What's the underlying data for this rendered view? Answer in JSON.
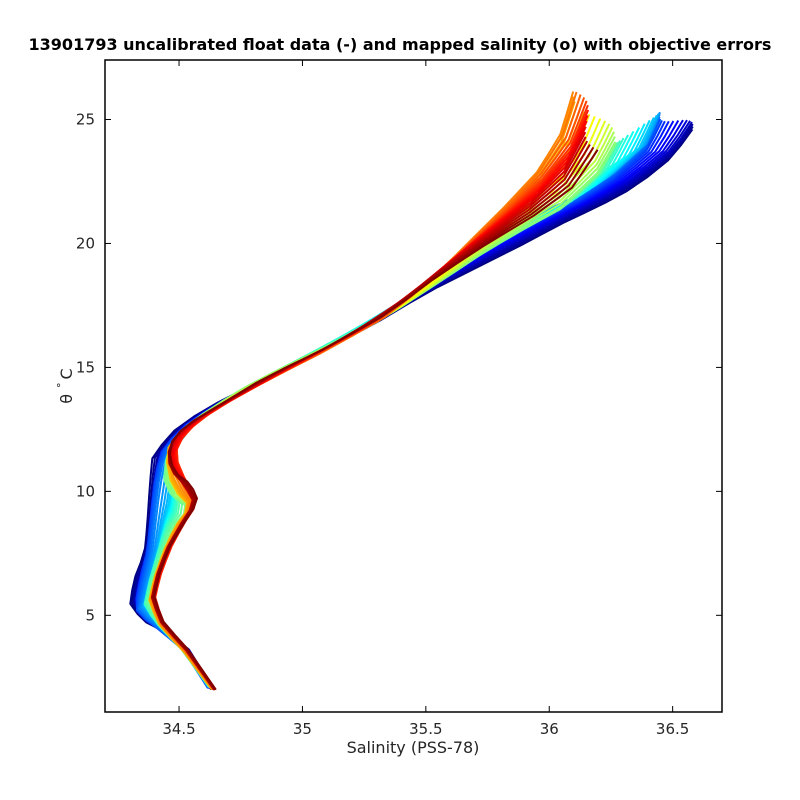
{
  "chart_data": {
    "type": "line",
    "title": "13901793 uncalibrated float data (-) and mapped salinity (o) with objective errors",
    "xlabel": "Salinity (PSS-78)",
    "ylabel_symbol": "θ",
    "ylabel_degree": "°",
    "ylabel_unit": "C",
    "xlim": [
      34.2,
      36.7
    ],
    "ylim": [
      1.1,
      27.4
    ],
    "xticks": [
      {
        "value": 34.5,
        "label": "34.5"
      },
      {
        "value": 35,
        "label": "35"
      },
      {
        "value": 35.5,
        "label": "35.5"
      },
      {
        "value": 36,
        "label": "36"
      },
      {
        "value": 36.5,
        "label": "36.5"
      }
    ],
    "yticks": [
      {
        "value": 5,
        "label": "5"
      },
      {
        "value": 10,
        "label": "10"
      },
      {
        "value": 15,
        "label": "15"
      },
      {
        "value": 20,
        "label": "20"
      },
      {
        "value": 25,
        "label": "25"
      }
    ],
    "grid": false,
    "colormap": "jet",
    "profile_count": 60,
    "representative_profiles": [
      {
        "color": "#00008f",
        "points": [
          [
            34.63,
            2.0
          ],
          [
            34.55,
            3.5
          ],
          [
            34.45,
            4.3
          ],
          [
            34.35,
            4.8
          ],
          [
            34.3,
            5.5
          ],
          [
            34.32,
            6.5
          ],
          [
            34.36,
            7.5
          ],
          [
            34.37,
            8.5
          ],
          [
            34.38,
            10.0
          ],
          [
            34.39,
            11.3
          ],
          [
            34.46,
            12.3
          ],
          [
            34.6,
            13.3
          ],
          [
            34.8,
            14.3
          ],
          [
            35.05,
            15.5
          ],
          [
            35.3,
            16.8
          ],
          [
            35.5,
            18.0
          ],
          [
            35.7,
            19.0
          ],
          [
            35.9,
            20.0
          ],
          [
            36.05,
            20.8
          ],
          [
            36.2,
            21.5
          ],
          [
            36.35,
            22.3
          ],
          [
            36.5,
            23.5
          ],
          [
            36.58,
            24.6
          ]
        ]
      },
      {
        "color": "#00cfff",
        "points": [
          [
            34.62,
            2.1
          ],
          [
            34.52,
            3.6
          ],
          [
            34.42,
            4.5
          ],
          [
            34.34,
            5.2
          ],
          [
            34.36,
            6.2
          ],
          [
            34.39,
            7.5
          ],
          [
            34.4,
            8.5
          ],
          [
            34.42,
            10.2
          ],
          [
            34.45,
            11.6
          ],
          [
            34.53,
            12.6
          ],
          [
            34.68,
            13.6
          ],
          [
            34.9,
            14.8
          ],
          [
            35.15,
            16.1
          ],
          [
            35.4,
            17.6
          ],
          [
            35.6,
            19.1
          ],
          [
            35.8,
            20.4
          ],
          [
            35.98,
            21.3
          ],
          [
            36.15,
            22.1
          ],
          [
            36.28,
            23.0
          ],
          [
            36.4,
            24.1
          ],
          [
            36.45,
            25.3
          ]
        ]
      },
      {
        "color": "#ffbf00",
        "points": [
          [
            34.63,
            2.1
          ],
          [
            34.52,
            3.6
          ],
          [
            34.43,
            4.6
          ],
          [
            34.38,
            5.5
          ],
          [
            34.4,
            6.4
          ],
          [
            34.44,
            7.6
          ],
          [
            34.48,
            8.6
          ],
          [
            34.55,
            9.3
          ],
          [
            34.45,
            10.0
          ],
          [
            34.45,
            11.5
          ],
          [
            34.5,
            12.4
          ],
          [
            34.62,
            13.3
          ],
          [
            34.8,
            14.4
          ],
          [
            35.05,
            15.6
          ],
          [
            35.3,
            16.8
          ],
          [
            35.55,
            18.4
          ],
          [
            35.73,
            19.6
          ],
          [
            35.9,
            20.6
          ],
          [
            36.05,
            21.4
          ],
          [
            36.2,
            22.8
          ],
          [
            36.27,
            24.0
          ]
        ]
      },
      {
        "color": "#ff5f00",
        "points": [
          [
            34.64,
            2.0
          ],
          [
            34.53,
            3.5
          ],
          [
            34.43,
            4.6
          ],
          [
            34.39,
            5.6
          ],
          [
            34.41,
            6.5
          ],
          [
            34.45,
            7.6
          ],
          [
            34.5,
            8.6
          ],
          [
            34.56,
            9.5
          ],
          [
            34.5,
            10.3
          ],
          [
            34.46,
            11.7
          ],
          [
            34.53,
            12.5
          ],
          [
            34.66,
            13.4
          ],
          [
            34.88,
            14.6
          ],
          [
            35.12,
            15.8
          ],
          [
            35.38,
            17.3
          ],
          [
            35.58,
            19.1
          ],
          [
            35.7,
            20.3
          ],
          [
            35.83,
            21.6
          ],
          [
            35.96,
            23.0
          ],
          [
            36.05,
            24.5
          ],
          [
            36.1,
            26.2
          ]
        ]
      },
      {
        "color": "#800000",
        "points": [
          [
            34.65,
            2.0
          ],
          [
            34.54,
            3.6
          ],
          [
            34.44,
            4.7
          ],
          [
            34.4,
            5.7
          ],
          [
            34.42,
            6.6
          ],
          [
            34.46,
            7.7
          ],
          [
            34.52,
            8.7
          ],
          [
            34.58,
            9.6
          ],
          [
            34.55,
            10.3
          ],
          [
            34.48,
            10.8
          ],
          [
            34.46,
            11.8
          ],
          [
            34.52,
            12.6
          ],
          [
            34.65,
            13.4
          ],
          [
            34.85,
            14.6
          ],
          [
            35.1,
            15.8
          ],
          [
            35.35,
            17.2
          ],
          [
            35.55,
            18.7
          ],
          [
            35.75,
            20.0
          ],
          [
            35.95,
            21.2
          ],
          [
            36.1,
            22.3
          ],
          [
            36.2,
            23.8
          ]
        ]
      }
    ]
  }
}
